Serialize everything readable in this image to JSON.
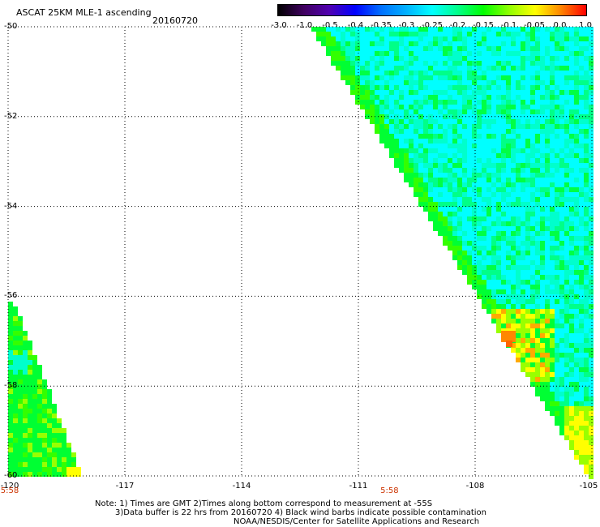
{
  "header": {
    "title": "ASCAT 25KM MLE-1 ascending",
    "date": "20160720"
  },
  "colorbar": {
    "labels": [
      "-3.0",
      "-1.0",
      "-0.5",
      "-0.4",
      "-0.35",
      "-0.3",
      "-0.25",
      "-0.2",
      "-0.15",
      "-0.1",
      "-0.05",
      "0.0",
      "1.0"
    ],
    "colors": [
      "#000000",
      "#400060",
      "#5000b0",
      "#0000ff",
      "#0070ff",
      "#00b0ff",
      "#00ffff",
      "#00ff88",
      "#00ff00",
      "#90ff00",
      "#ffff00",
      "#ff8800",
      "#ff0000"
    ]
  },
  "map": {
    "lat_labels": [
      "-50",
      "-52",
      "-54",
      "-56",
      "-58",
      "-60"
    ],
    "lon_labels": [
      "-120",
      "-117",
      "-114",
      "-111",
      "-108",
      "-105"
    ],
    "time_labels": [
      {
        "text": "5:58",
        "lon": -120
      },
      {
        "text": "5:58",
        "lon": -110.2
      }
    ],
    "lat_range": [
      -60,
      -50
    ],
    "lon_range": [
      -120,
      -105
    ],
    "grid": true
  },
  "notes": {
    "line1": "Note: 1) Times are GMT 2)Times along bottom correspond to measurement at -55S",
    "line2": "3)Data buffer is 22 hrs from 20160720 4) Black wind barbs indicate possible contamination",
    "line3": "NOAA/NESDIS/Center for Satellite Applications and Research"
  }
}
